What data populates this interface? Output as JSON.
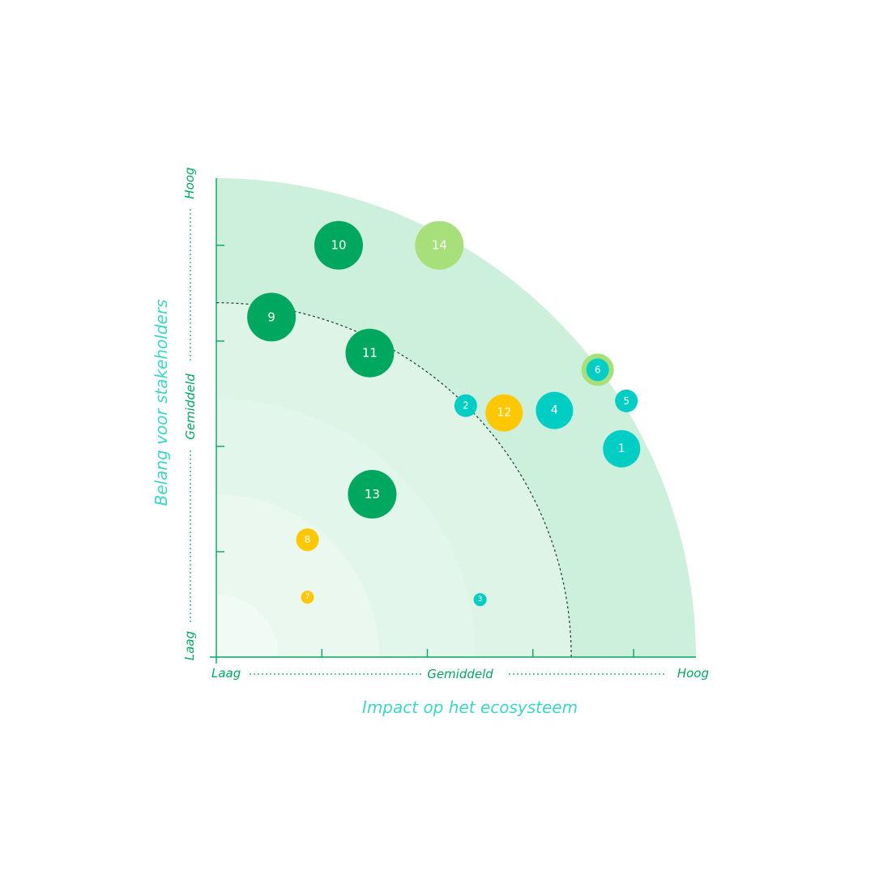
{
  "chart_data": {
    "type": "scatter",
    "title": "",
    "xlabel": "Impact op het ecosysteem",
    "ylabel": "Belang voor stakeholders",
    "xlim": [
      0,
      10
    ],
    "ylim": [
      0,
      10
    ],
    "x_ticks": [
      2.2,
      4.4,
      6.6,
      8.7
    ],
    "y_ticks": [
      2.2,
      4.4,
      6.6,
      8.6
    ],
    "x_level_labels": {
      "low": "Laag",
      "mid": "Gemiddeld",
      "high": "Hoog"
    },
    "y_level_labels": {
      "low": "Laag",
      "mid": "Gemiddeld",
      "high": "Hoog"
    },
    "zones": [
      {
        "radius": 1.3,
        "color": "#f1fbf5"
      },
      {
        "radius": 3.4,
        "color": "#eaf8f0"
      },
      {
        "radius": 5.4,
        "color": "#e3f6eb"
      },
      {
        "radius": 7.4,
        "color": "#ddf4e7"
      },
      {
        "radius": 10,
        "color": "#cdf0dc"
      }
    ],
    "threshold_radius": 7.4,
    "points": [
      {
        "label": "1",
        "x": 8.45,
        "y": 4.35,
        "size": 3,
        "color": "#00cdc3"
      },
      {
        "label": "2",
        "x": 5.2,
        "y": 5.25,
        "size": 2,
        "color": "#00cdc3"
      },
      {
        "label": "3",
        "x": 5.5,
        "y": 1.2,
        "size": 1,
        "color": "#00cdc3"
      },
      {
        "label": "4",
        "x": 7.05,
        "y": 5.15,
        "size": 3,
        "color": "#00cdc3"
      },
      {
        "label": "5",
        "x": 8.55,
        "y": 5.35,
        "size": 2,
        "color": "#00cdc3"
      },
      {
        "label": "6",
        "x": 7.95,
        "y": 6.0,
        "size": 2,
        "color": "#00cdc3",
        "ring": "#a7e07a"
      },
      {
        "label": "7",
        "x": 1.9,
        "y": 1.25,
        "size": 1,
        "color": "#ffc700"
      },
      {
        "label": "8",
        "x": 1.9,
        "y": 2.45,
        "size": 2,
        "color": "#ffc700"
      },
      {
        "label": "9",
        "x": 1.15,
        "y": 7.1,
        "size": 4,
        "color": "#00a85f"
      },
      {
        "label": "10",
        "x": 2.55,
        "y": 8.6,
        "size": 4,
        "color": "#00a85f"
      },
      {
        "label": "11",
        "x": 3.2,
        "y": 6.35,
        "size": 4,
        "color": "#00a85f"
      },
      {
        "label": "12",
        "x": 6.0,
        "y": 5.1,
        "size": 3,
        "color": "#ffc700"
      },
      {
        "label": "13",
        "x": 3.25,
        "y": 3.4,
        "size": 4,
        "color": "#00a85f"
      },
      {
        "label": "14",
        "x": 4.65,
        "y": 8.6,
        "size": 4,
        "color": "#a7e07a"
      }
    ],
    "colors": {
      "axis": "#00a85f",
      "axis_title": "#3dd6c6",
      "threshold": "#1f3b2d"
    }
  }
}
